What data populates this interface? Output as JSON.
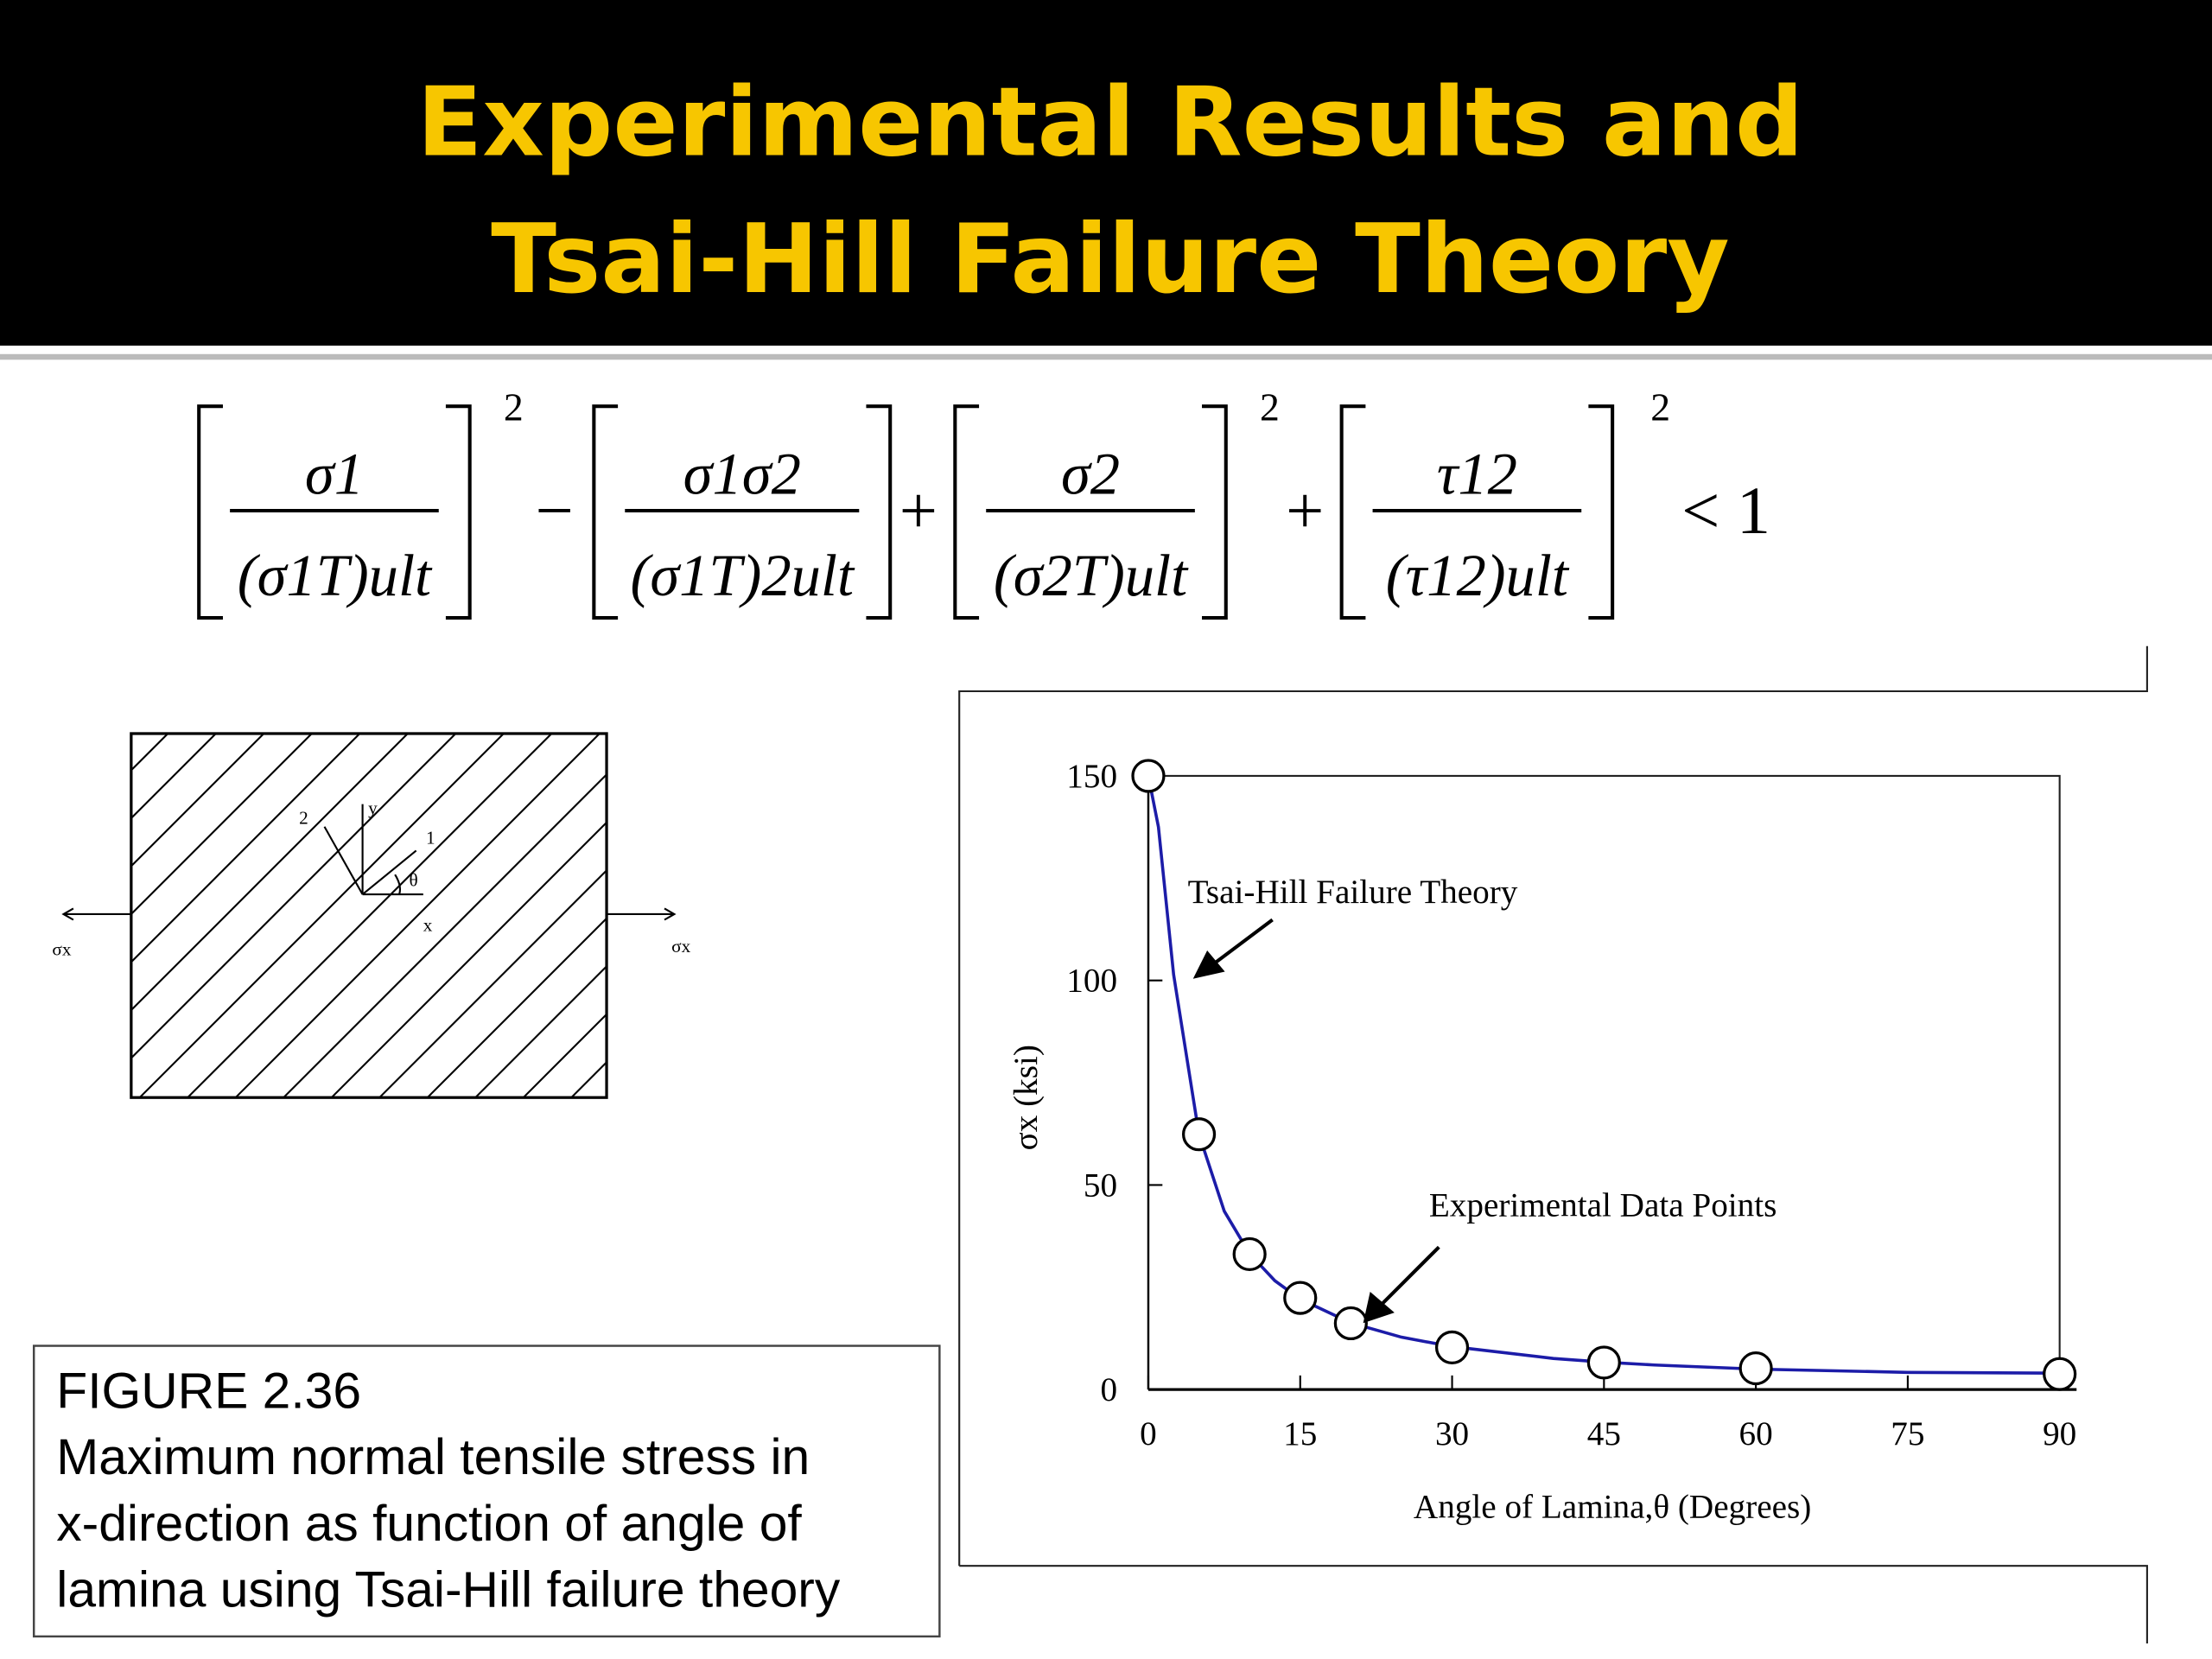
{
  "slide": {
    "title": [
      "Experimental Results and",
      "Tsai-Hill Failure Theory"
    ],
    "formula": {
      "terms": [
        {
          "num": "σ1",
          "den": "(σ1T)ult",
          "exp": "2"
        },
        {
          "num": "σ1σ2",
          "den": "(σ1T)2ult"
        },
        {
          "num": "σ2",
          "den": "(σ2T)ult",
          "exp": "2"
        },
        {
          "num": "τ12",
          "den": "(τ12)ult",
          "exp": "2"
        }
      ],
      "operators": [
        "−",
        "+",
        "+"
      ],
      "rhs": "< 1"
    },
    "diagram": {
      "labels": [
        "2",
        "y",
        "1",
        "θ",
        "x"
      ],
      "left_load": "σx",
      "right_load": "σx"
    },
    "caption": [
      "FIGURE 2.36",
      "Maximum normal tensile stress in",
      "x-direction as function of angle of",
      "lamina using Tsai-Hill failure theory"
    ]
  },
  "chart_data": {
    "type": "line",
    "x_label": "Angle of Lamina,θ (Degrees)",
    "y_label": "σx (ksi)",
    "xlim": [
      0,
      90
    ],
    "xticks": [
      0,
      15,
      30,
      45,
      60,
      75,
      90
    ],
    "ylim": [
      0,
      150
    ],
    "yticks": [
      0,
      50,
      100,
      150
    ],
    "series": [
      {
        "name": "Tsai-Hill Failure Theory",
        "color": "#1c1ca8",
        "markers": false,
        "x": [
          0,
          1,
          2.5,
          5,
          7.5,
          10,
          12.5,
          15,
          20,
          25,
          30,
          40,
          45,
          50,
          60,
          75,
          90
        ],
        "values": [
          150,
          137.5,
          101.4,
          62.4,
          43.6,
          33.2,
          26.6,
          22.1,
          16.3,
          12.8,
          10.5,
          7.6,
          6.7,
          6.0,
          5.0,
          4.2,
          4.0
        ]
      },
      {
        "name": "Experimental Data Points",
        "color": "#000000",
        "markers": true,
        "x": [
          0,
          5,
          10,
          15,
          20,
          30,
          45,
          60,
          90
        ],
        "values": [
          150,
          62.4,
          33.1,
          22.4,
          16.2,
          10.3,
          6.6,
          5.2,
          3.8
        ]
      }
    ]
  }
}
